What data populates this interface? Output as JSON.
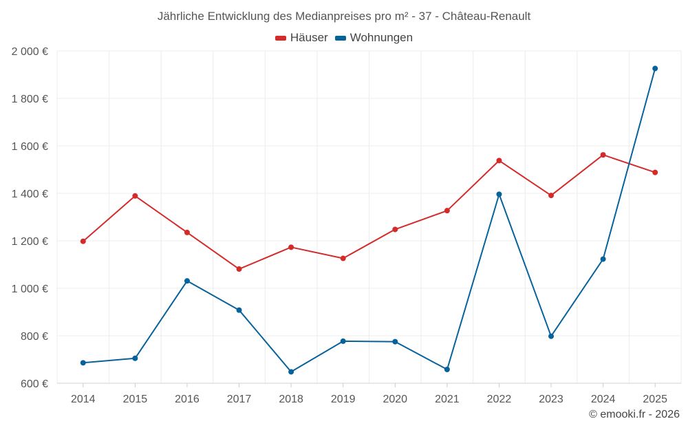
{
  "chart_data": {
    "type": "line",
    "title": "Jährliche Entwicklung des Medianpreises pro m² - 37 - Château-Renault",
    "xlabel": "",
    "ylabel": "",
    "x": [
      "2014",
      "2015",
      "2016",
      "2017",
      "2018",
      "2019",
      "2020",
      "2021",
      "2022",
      "2023",
      "2024",
      "2025"
    ],
    "ylim": [
      600,
      2000
    ],
    "yticks": [
      600,
      800,
      1000,
      1200,
      1400,
      1600,
      1800,
      2000
    ],
    "ytick_labels": [
      "600 €",
      "800 €",
      "1 000 €",
      "1 200 €",
      "1 400 €",
      "1 600 €",
      "1 800 €",
      "2 000 €"
    ],
    "grid": true,
    "legend_position": "top-center",
    "series": [
      {
        "name": "Häuser",
        "color": "#d42a2a",
        "values": [
          1198,
          1389,
          1235,
          1081,
          1173,
          1126,
          1248,
          1327,
          1538,
          1391,
          1562,
          1488
        ]
      },
      {
        "name": "Wohnungen",
        "color": "#06629b",
        "values": [
          686,
          705,
          1031,
          908,
          648,
          777,
          775,
          658,
          1396,
          798,
          1123,
          1926
        ]
      }
    ]
  },
  "credit": "© emooki.fr - 2026"
}
